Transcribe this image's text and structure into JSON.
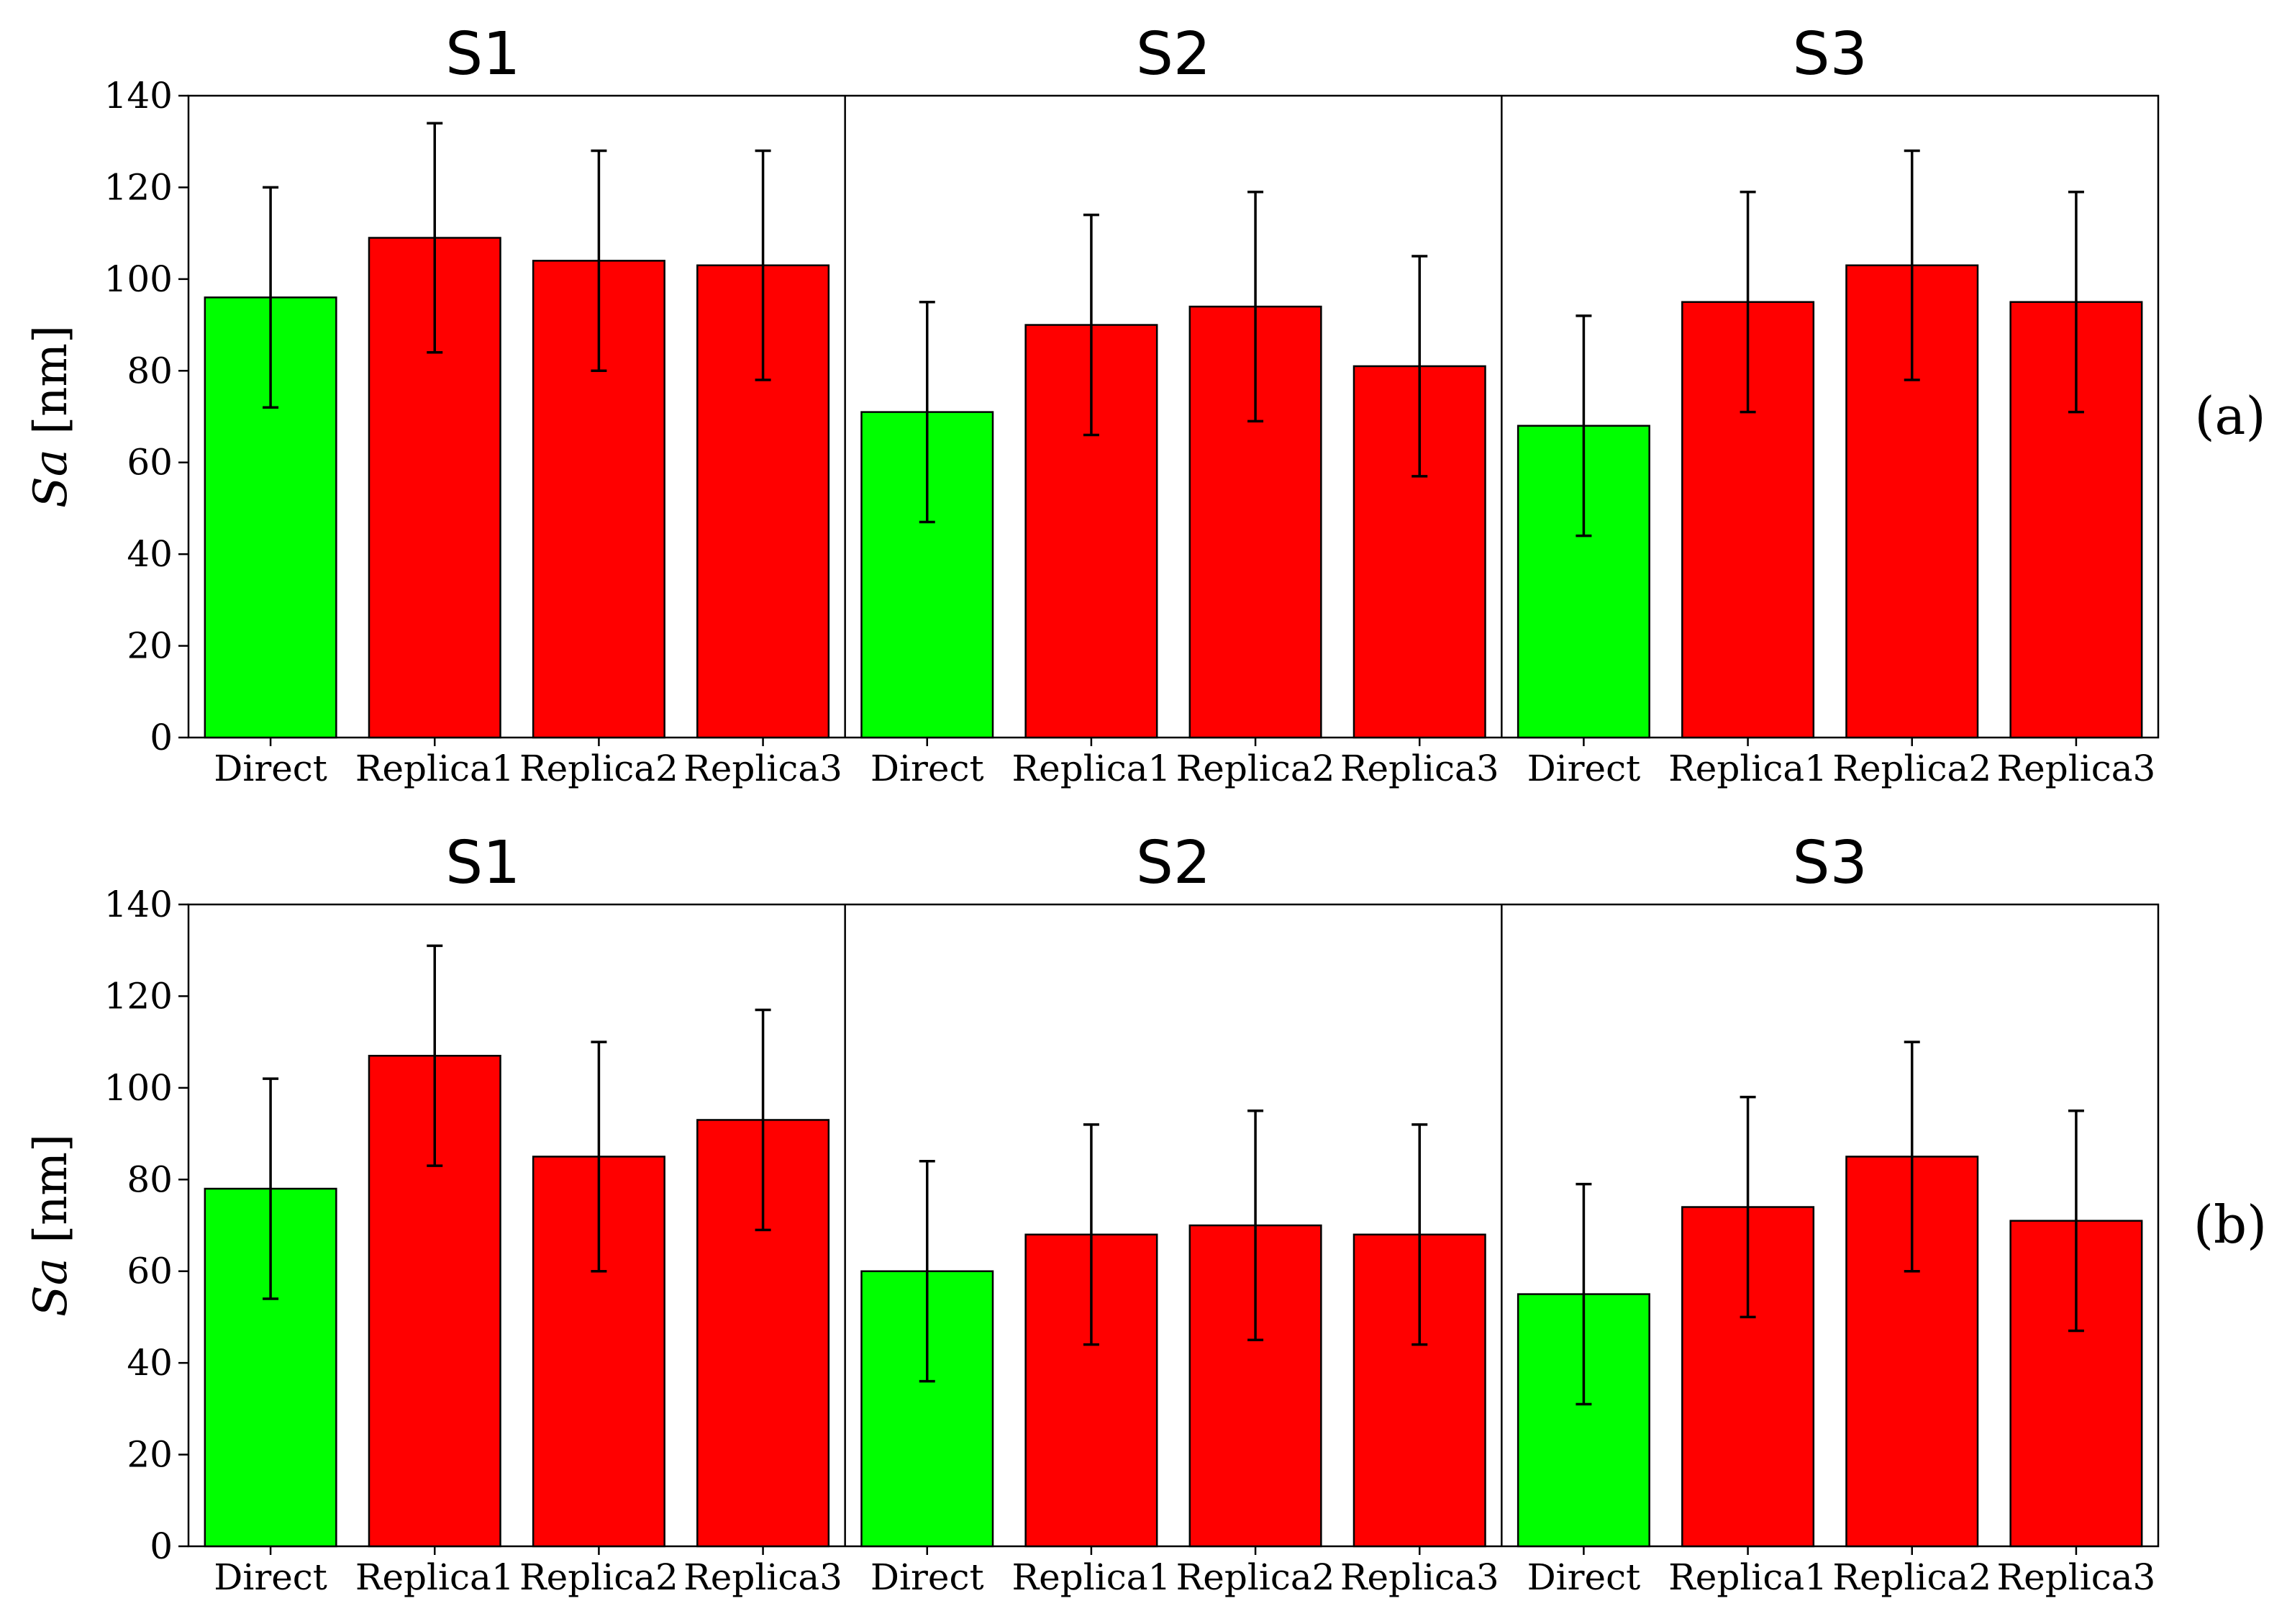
{
  "chart_data": [
    {
      "type": "bar",
      "panel_label": "(a)",
      "ylabel_italic": "Sa",
      "ylabel_unit": "[nm]",
      "ylim": [
        0,
        140
      ],
      "yticks": [
        0,
        20,
        40,
        60,
        80,
        100,
        120,
        140
      ],
      "categories": [
        "Direct",
        "Replica1",
        "Replica2",
        "Replica3"
      ],
      "colors": {
        "direct": "#00ff00",
        "replica": "#ff0000"
      },
      "groups": [
        {
          "title": "S1",
          "values": [
            96,
            109,
            104,
            103
          ],
          "errors": [
            24,
            25,
            24,
            25
          ]
        },
        {
          "title": "S2",
          "values": [
            71,
            90,
            94,
            81
          ],
          "errors": [
            24,
            24,
            25,
            24
          ]
        },
        {
          "title": "S3",
          "values": [
            68,
            95,
            103,
            95
          ],
          "errors": [
            24,
            24,
            25,
            24
          ]
        }
      ]
    },
    {
      "type": "bar",
      "panel_label": "(b)",
      "ylabel_italic": "Sa",
      "ylabel_unit": "[nm]",
      "ylim": [
        0,
        140
      ],
      "yticks": [
        0,
        20,
        40,
        60,
        80,
        100,
        120,
        140
      ],
      "categories": [
        "Direct",
        "Replica1",
        "Replica2",
        "Replica3"
      ],
      "colors": {
        "direct": "#00ff00",
        "replica": "#ff0000"
      },
      "groups": [
        {
          "title": "S1",
          "values": [
            78,
            107,
            85,
            93
          ],
          "errors": [
            24,
            24,
            25,
            24
          ]
        },
        {
          "title": "S2",
          "values": [
            60,
            68,
            70,
            68
          ],
          "errors": [
            24,
            24,
            25,
            24
          ]
        },
        {
          "title": "S3",
          "values": [
            55,
            74,
            85,
            71
          ],
          "errors": [
            24,
            24,
            25,
            24
          ]
        }
      ]
    }
  ]
}
